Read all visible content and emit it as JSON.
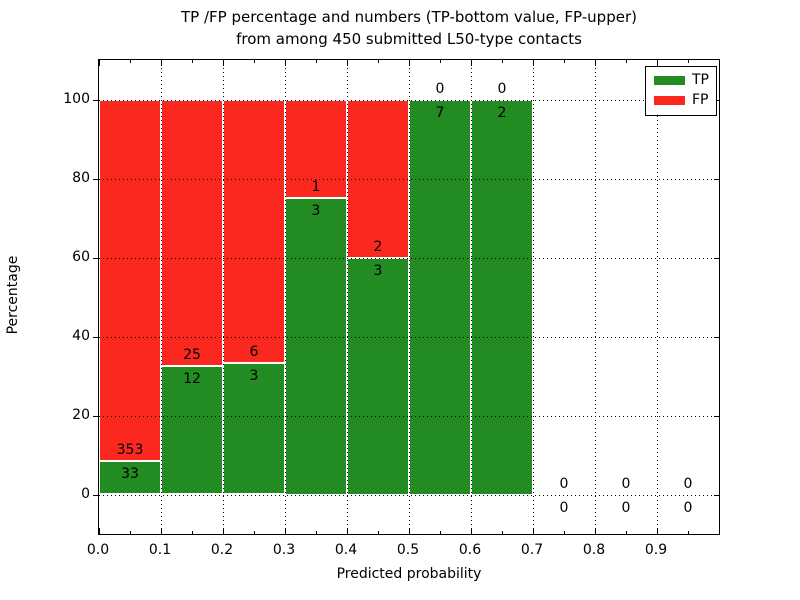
{
  "title_line1": "TP /FP percentage and numbers (TP-bottom value, FP-upper)",
  "title_line2": "from among 450 submitted L50-type contacts",
  "chart_data": {
    "type": "bar",
    "stacked": true,
    "title_line1": "TP /FP percentage and numbers (TP-bottom value, FP-upper)",
    "title_line2": "from among 450 submitted L50-type contacts",
    "xlabel": "Predicted probability",
    "ylabel": "Percentage",
    "bins": [
      "0.0-0.1",
      "0.1-0.2",
      "0.2-0.3",
      "0.3-0.4",
      "0.4-0.5",
      "0.5-0.6",
      "0.6-0.7",
      "0.7-0.8",
      "0.8-0.9",
      "0.9-1.0"
    ],
    "bin_start": [
      0.0,
      0.1,
      0.2,
      0.3,
      0.4,
      0.5,
      0.6,
      0.7,
      0.8,
      0.9
    ],
    "bin_width": 0.1,
    "series": [
      {
        "name": "TP",
        "color": "#228b22",
        "values": [
          33,
          12,
          3,
          3,
          3,
          7,
          2,
          0,
          0,
          0
        ]
      },
      {
        "name": "FP",
        "color": "#fa281e",
        "values": [
          353,
          25,
          6,
          1,
          2,
          0,
          0,
          0,
          0,
          0
        ]
      }
    ],
    "tp_percent": [
      8.5,
      32.4,
      33.3,
      75.0,
      60.0,
      100.0,
      100.0,
      0.0,
      0.0,
      0.0
    ],
    "total_contacts": 450,
    "xlim": [
      0.0,
      1.0
    ],
    "ylim": [
      -10,
      110
    ],
    "x_tick_labels": [
      "0.0",
      "0.1",
      "0.2",
      "0.3",
      "0.4",
      "0.5",
      "0.6",
      "0.7",
      "0.8",
      "0.9"
    ],
    "x_tick_values": [
      0.0,
      0.1,
      0.2,
      0.3,
      0.4,
      0.5,
      0.6,
      0.7,
      0.8,
      0.9
    ],
    "x_minor_tick_values": [
      0.05,
      0.15,
      0.25,
      0.35,
      0.45,
      0.55,
      0.65,
      0.75,
      0.85,
      0.95
    ],
    "y_tick_labels": [
      "0",
      "20",
      "40",
      "60",
      "80",
      "100"
    ],
    "y_tick_values": [
      0,
      20,
      40,
      60,
      80,
      100
    ],
    "x_grid_values": [
      0.1,
      0.2,
      0.3,
      0.4,
      0.5,
      0.6,
      0.7,
      0.8,
      0.9
    ],
    "y_grid_values": [
      0,
      20,
      40,
      60,
      80,
      100
    ],
    "grid_style": "dotted",
    "bar_edge_color": "#ffffff",
    "legend": {
      "position": "upper right",
      "entries": [
        {
          "label": "TP",
          "color": "#228b22"
        },
        {
          "label": "FP",
          "color": "#fa281e"
        }
      ]
    }
  }
}
